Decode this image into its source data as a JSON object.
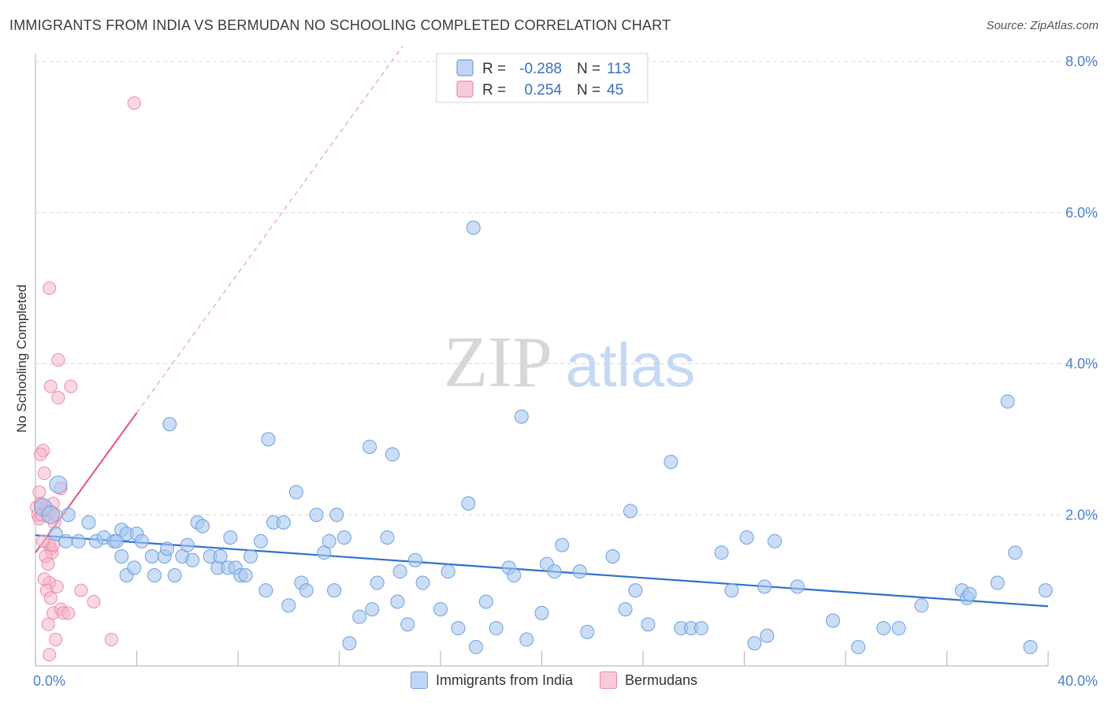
{
  "header": {
    "title": "IMMIGRANTS FROM INDIA VS BERMUDAN NO SCHOOLING COMPLETED CORRELATION CHART",
    "source": "Source: ZipAtlas.com"
  },
  "watermark": {
    "zip": "ZIP",
    "atlas": "atlas"
  },
  "colors": {
    "blue_fill": "#a9c8f0",
    "blue_stroke": "#6d9fe0",
    "blue_line": "#2f6fce",
    "pink_fill": "#f6b8cc",
    "pink_stroke": "#ec8aab",
    "pink_line": "#e0608f",
    "tick_text": "#4a80d0",
    "grid": "#d8d8d8"
  },
  "chart_data": {
    "type": "scatter",
    "title": "IMMIGRANTS FROM INDIA VS BERMUDAN NO SCHOOLING COMPLETED CORRELATION CHART",
    "xlabel": "",
    "ylabel": "No Schooling Completed",
    "xlim": [
      0,
      40
    ],
    "ylim": [
      0,
      8
    ],
    "x_tick_labels": [
      "0.0%",
      "40.0%"
    ],
    "y_ticks": [
      2,
      4,
      6,
      8
    ],
    "y_tick_labels": [
      "2.0%",
      "4.0%",
      "6.0%",
      "8.0%"
    ],
    "grid": true,
    "legend_placement": "top-center",
    "legend": [
      {
        "series": "Immigrants from India",
        "r_label": "R =",
        "r": "-0.288",
        "n_label": "N =",
        "n": "113"
      },
      {
        "series": "Bermudans",
        "r_label": "R =",
        "r": "0.254",
        "n_label": "N =",
        "n": "45"
      }
    ],
    "series": [
      {
        "name": "Immigrants from India",
        "color": "blue",
        "trend": {
          "x0": 0,
          "y0": 1.73,
          "x1": 40,
          "y1": 0.79
        },
        "points": [
          [
            0.3,
            2.1
          ],
          [
            0.6,
            2.0
          ],
          [
            0.9,
            2.4
          ],
          [
            1.3,
            2.0
          ],
          [
            0.8,
            1.75
          ],
          [
            1.2,
            1.65
          ],
          [
            1.7,
            1.65
          ],
          [
            2.1,
            1.9
          ],
          [
            2.4,
            1.65
          ],
          [
            2.7,
            1.7
          ],
          [
            3.1,
            1.65
          ],
          [
            3.4,
            1.8
          ],
          [
            3.2,
            1.65
          ],
          [
            3.6,
            1.75
          ],
          [
            3.4,
            1.45
          ],
          [
            3.6,
            1.2
          ],
          [
            3.9,
            1.3
          ],
          [
            4.0,
            1.75
          ],
          [
            4.2,
            1.65
          ],
          [
            4.6,
            1.45
          ],
          [
            4.7,
            1.2
          ],
          [
            5.1,
            1.45
          ],
          [
            5.2,
            1.55
          ],
          [
            5.3,
            3.2
          ],
          [
            5.5,
            1.2
          ],
          [
            5.8,
            1.45
          ],
          [
            6.0,
            1.6
          ],
          [
            6.2,
            1.4
          ],
          [
            6.4,
            1.9
          ],
          [
            6.6,
            1.85
          ],
          [
            6.9,
            1.45
          ],
          [
            7.2,
            1.3
          ],
          [
            7.3,
            1.45
          ],
          [
            7.6,
            1.3
          ],
          [
            7.7,
            1.7
          ],
          [
            7.9,
            1.3
          ],
          [
            8.1,
            1.2
          ],
          [
            8.3,
            1.2
          ],
          [
            8.5,
            1.45
          ],
          [
            8.9,
            1.65
          ],
          [
            9.1,
            1.0
          ],
          [
            9.2,
            3.0
          ],
          [
            9.4,
            1.9
          ],
          [
            9.8,
            1.9
          ],
          [
            10.0,
            0.8
          ],
          [
            10.3,
            2.3
          ],
          [
            10.5,
            1.1
          ],
          [
            10.7,
            1.0
          ],
          [
            11.1,
            2.0
          ],
          [
            11.4,
            1.5
          ],
          [
            11.6,
            1.65
          ],
          [
            11.8,
            1.0
          ],
          [
            11.9,
            2.0
          ],
          [
            12.2,
            1.7
          ],
          [
            12.4,
            0.3
          ],
          [
            12.8,
            0.65
          ],
          [
            13.2,
            2.9
          ],
          [
            13.3,
            0.75
          ],
          [
            13.5,
            1.1
          ],
          [
            13.9,
            1.7
          ],
          [
            14.1,
            2.8
          ],
          [
            14.3,
            0.85
          ],
          [
            14.4,
            1.25
          ],
          [
            14.7,
            0.55
          ],
          [
            15.0,
            1.4
          ],
          [
            15.3,
            1.1
          ],
          [
            16.0,
            0.75
          ],
          [
            16.3,
            1.25
          ],
          [
            16.7,
            0.5
          ],
          [
            17.1,
            2.15
          ],
          [
            17.4,
            0.25
          ],
          [
            17.8,
            0.85
          ],
          [
            18.2,
            0.5
          ],
          [
            18.7,
            1.3
          ],
          [
            18.9,
            1.2
          ],
          [
            19.2,
            3.3
          ],
          [
            19.4,
            0.35
          ],
          [
            20.0,
            0.7
          ],
          [
            20.2,
            1.35
          ],
          [
            20.5,
            1.25
          ],
          [
            20.8,
            1.6
          ],
          [
            21.5,
            1.25
          ],
          [
            21.8,
            0.45
          ],
          [
            22.8,
            1.45
          ],
          [
            23.3,
            0.75
          ],
          [
            23.5,
            2.05
          ],
          [
            23.7,
            1.0
          ],
          [
            24.2,
            0.55
          ],
          [
            25.1,
            2.7
          ],
          [
            25.5,
            0.5
          ],
          [
            25.9,
            0.5
          ],
          [
            26.3,
            0.5
          ],
          [
            27.1,
            1.5
          ],
          [
            27.5,
            1.0
          ],
          [
            28.1,
            1.7
          ],
          [
            28.4,
            0.3
          ],
          [
            28.8,
            1.05
          ],
          [
            28.9,
            0.4
          ],
          [
            29.2,
            1.65
          ],
          [
            30.1,
            1.05
          ],
          [
            31.5,
            0.6
          ],
          [
            32.5,
            0.25
          ],
          [
            33.5,
            0.5
          ],
          [
            34.1,
            0.5
          ],
          [
            35.0,
            0.8
          ],
          [
            36.6,
            1.0
          ],
          [
            36.8,
            0.9
          ],
          [
            36.9,
            0.95
          ],
          [
            38.0,
            1.1
          ],
          [
            38.4,
            3.5
          ],
          [
            38.7,
            1.5
          ],
          [
            39.3,
            0.25
          ],
          [
            39.9,
            1.0
          ],
          [
            17.3,
            5.8
          ]
        ]
      },
      {
        "name": "Bermudans",
        "color": "pink",
        "trend": {
          "x0": 0,
          "y0": 1.5,
          "x1": 4.0,
          "y1": 3.35,
          "dashed_to": {
            "x": 14.5,
            "y": 8.2
          }
        },
        "points": [
          [
            0.05,
            2.1
          ],
          [
            0.1,
            2.0
          ],
          [
            0.15,
            1.95
          ],
          [
            0.2,
            2.15
          ],
          [
            0.25,
            2.0
          ],
          [
            0.3,
            2.85
          ],
          [
            0.35,
            2.55
          ],
          [
            0.4,
            2.1
          ],
          [
            0.45,
            2.05
          ],
          [
            0.5,
            2.0
          ],
          [
            0.55,
            1.6
          ],
          [
            0.6,
            1.55
          ],
          [
            0.65,
            1.5
          ],
          [
            0.7,
            1.6
          ],
          [
            0.75,
            1.9
          ],
          [
            0.3,
            1.65
          ],
          [
            0.4,
            1.45
          ],
          [
            0.5,
            1.35
          ],
          [
            0.55,
            1.1
          ],
          [
            0.35,
            1.15
          ],
          [
            0.45,
            1.0
          ],
          [
            0.6,
            0.9
          ],
          [
            0.7,
            0.7
          ],
          [
            0.5,
            0.55
          ],
          [
            0.55,
            0.15
          ],
          [
            0.8,
            0.35
          ],
          [
            0.85,
            1.05
          ],
          [
            1.0,
            0.75
          ],
          [
            1.1,
            0.7
          ],
          [
            1.3,
            0.7
          ],
          [
            1.8,
            1.0
          ],
          [
            2.3,
            0.85
          ],
          [
            3.0,
            0.35
          ],
          [
            0.6,
            3.7
          ],
          [
            0.9,
            3.55
          ],
          [
            1.4,
            3.7
          ],
          [
            0.9,
            4.05
          ],
          [
            0.55,
            5.0
          ],
          [
            3.9,
            7.45
          ],
          [
            0.2,
            2.8
          ],
          [
            0.6,
            2.05
          ],
          [
            0.7,
            2.15
          ],
          [
            0.15,
            2.3
          ],
          [
            0.8,
            2.0
          ],
          [
            1.0,
            2.35
          ]
        ]
      }
    ]
  }
}
